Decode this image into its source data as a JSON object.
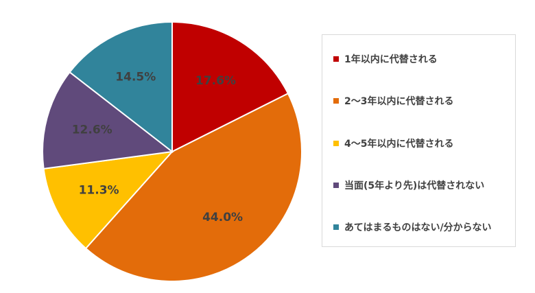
{
  "chart_data": {
    "type": "pie",
    "categories": [
      "1年以内に代替される",
      "2～3年以内に代替される",
      "4～5年以内に代替される",
      "当面(5年より先)は代替されない",
      "あてはまるものはない/分からない"
    ],
    "values": [
      17.6,
      44.0,
      11.3,
      12.6,
      14.5
    ],
    "data_labels": [
      "17.6%",
      "44.0%",
      "11.3%",
      "12.6%",
      "14.5%"
    ],
    "colors": [
      "#c00000",
      "#e36c0a",
      "#ffc000",
      "#604a7b",
      "#31849b"
    ],
    "start_angle": "12 o'clock",
    "direction": "clockwise",
    "legend_position": "right"
  }
}
